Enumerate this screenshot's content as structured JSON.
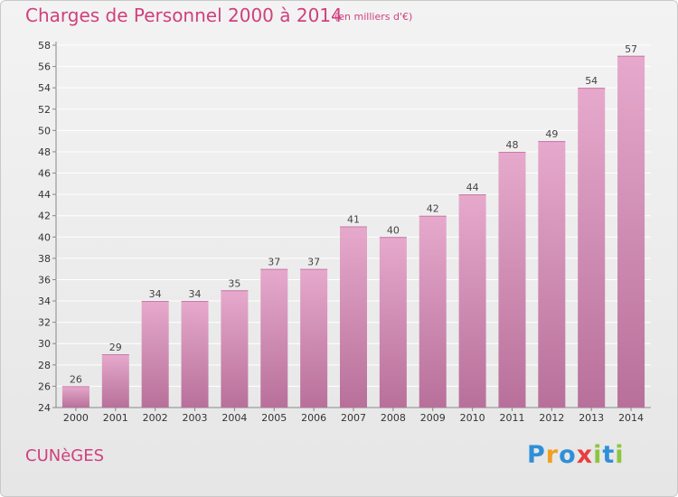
{
  "title": "Charges de Personnel 2000 à 2014",
  "subtitle": "(en milliers d'€)",
  "place": "CUNèGES",
  "logo": {
    "letters": [
      {
        "ch": "P",
        "color": "#2f8fd8"
      },
      {
        "ch": "r",
        "color": "#f0a020"
      },
      {
        "ch": "o",
        "color": "#2f8fd8"
      },
      {
        "ch": "x",
        "color": "#e83e3e"
      },
      {
        "ch": "i",
        "color": "#8cc63f"
      },
      {
        "ch": "t",
        "color": "#2f8fd8"
      },
      {
        "ch": "i",
        "color": "#8cc63f"
      }
    ]
  },
  "colors": {
    "bar_top": "#e6a9cc",
    "bar_bottom": "#b8709a",
    "accent": "#d0407d"
  },
  "chart_data": {
    "type": "bar",
    "categories": [
      "2000",
      "2001",
      "2002",
      "2003",
      "2004",
      "2005",
      "2006",
      "2007",
      "2008",
      "2009",
      "2010",
      "2011",
      "2012",
      "2013",
      "2014"
    ],
    "values": [
      26,
      29,
      34,
      34,
      35,
      37,
      37,
      41,
      40,
      42,
      44,
      48,
      49,
      54,
      57
    ],
    "ylim": [
      24,
      58
    ],
    "yticks": [
      24,
      26,
      28,
      30,
      32,
      34,
      36,
      38,
      40,
      42,
      44,
      46,
      48,
      50,
      52,
      54,
      56,
      58
    ],
    "grid": true,
    "title": "Charges de Personnel 2000 à 2014",
    "xlabel": "",
    "ylabel": ""
  }
}
